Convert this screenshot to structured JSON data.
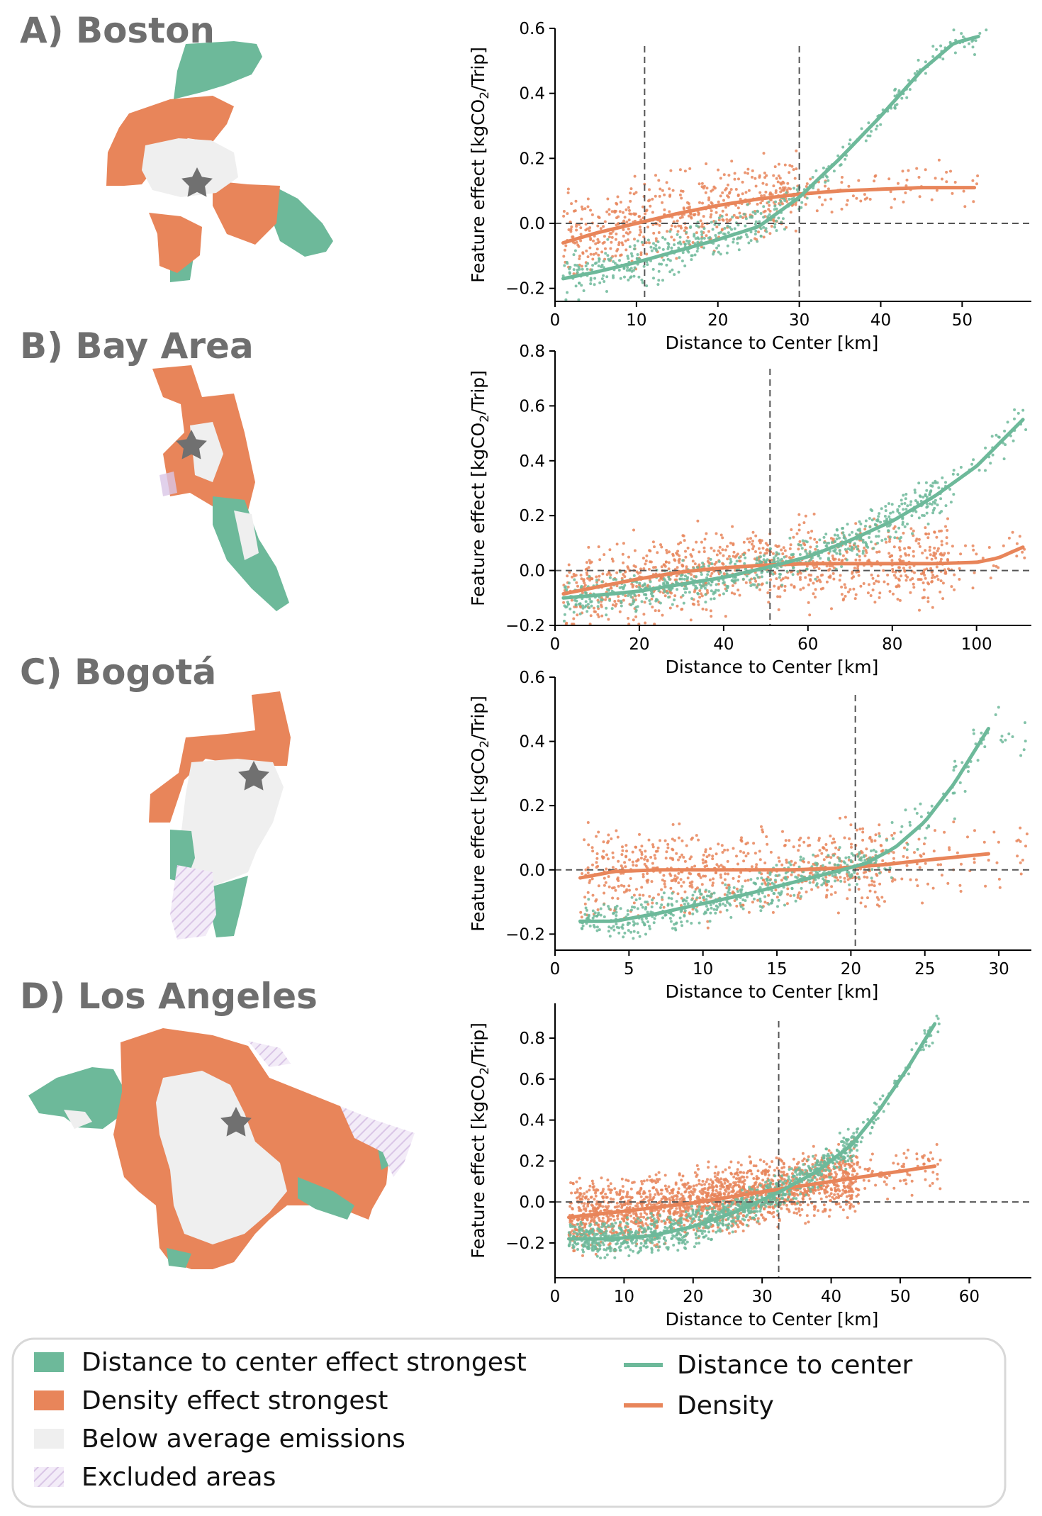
{
  "colors": {
    "distance": "#6db99a",
    "density": "#e8855a",
    "below": "#efefef",
    "excluded": "#d9c5e6",
    "star": "#707070",
    "title": "#6f6f6f"
  },
  "legend": {
    "items": [
      {
        "label": "Distance to center effect strongest",
        "kind": "patch",
        "color_key": "distance"
      },
      {
        "label": "Density effect strongest",
        "kind": "patch",
        "color_key": "density"
      },
      {
        "label": "Below average emissions",
        "kind": "patch",
        "color_key": "below"
      },
      {
        "label": "Excluded areas",
        "kind": "hatch",
        "color_key": "excluded"
      }
    ],
    "lines": [
      {
        "label": "Distance to center",
        "color_key": "distance"
      },
      {
        "label": "Density",
        "color_key": "density"
      }
    ]
  },
  "chart_data": [
    {
      "type": "scatter",
      "panel_title": "A) Boston",
      "map_icon": "boston-map",
      "xlabel": "Distance to Center [km]",
      "ylabel": "Feature effect [kgCO2/Trip]",
      "xlim": [
        0,
        58.5
      ],
      "ylim": [
        -0.24,
        0.6
      ],
      "xticks": [
        0,
        10,
        20,
        30,
        40,
        50
      ],
      "yticks": [
        -0.2,
        0.0,
        0.2,
        0.4,
        0.6
      ],
      "ytick_labels": [
        "−0.2",
        "0.0",
        "0.2",
        "0.4",
        "0.6"
      ],
      "vlines": [
        11,
        30
      ],
      "series": [
        {
          "name": "Density",
          "color_key": "density",
          "curve_x": [
            1,
            5,
            10,
            15,
            20,
            25,
            30,
            35,
            40,
            45,
            51.5
          ],
          "curve_y": [
            -0.06,
            -0.03,
            0.0,
            0.03,
            0.055,
            0.075,
            0.09,
            0.1,
            0.105,
            0.11,
            0.11
          ],
          "point_clouds": [
            {
              "count": 520,
              "x": [
                1,
                30
              ],
              "y_spread": 0.1
            },
            {
              "count": 70,
              "x": [
                30,
                52
              ],
              "y_spread": 0.06
            }
          ]
        },
        {
          "name": "Distance to center",
          "color_key": "distance",
          "curve_x": [
            1,
            5,
            10,
            15,
            20,
            25,
            30,
            35,
            40,
            45,
            49,
            52
          ],
          "curve_y": [
            -0.17,
            -0.15,
            -0.12,
            -0.085,
            -0.05,
            -0.01,
            0.08,
            0.2,
            0.33,
            0.47,
            0.555,
            0.575
          ],
          "point_clouds": [
            {
              "count": 330,
              "x": [
                1,
                30
              ],
              "y_spread": 0.06
            },
            {
              "count": 110,
              "x": [
                30,
                53
              ],
              "y_spread": 0.035
            }
          ]
        }
      ]
    },
    {
      "type": "scatter",
      "panel_title": "B) Bay Area",
      "map_icon": "bay-area-map",
      "xlabel": "Distance to Center [km]",
      "ylabel": "Feature effect [kgCO2/Trip]",
      "xlim": [
        0,
        113
      ],
      "ylim": [
        -0.2,
        0.8
      ],
      "xticks": [
        0,
        20,
        40,
        60,
        80,
        100
      ],
      "yticks": [
        -0.2,
        0.0,
        0.2,
        0.4,
        0.6,
        0.8
      ],
      "ytick_labels": [
        "−0.2",
        "0.0",
        "0.2",
        "0.4",
        "0.6",
        "0.8"
      ],
      "vlines": [
        51
      ],
      "series": [
        {
          "name": "Density",
          "color_key": "density",
          "curve_x": [
            2,
            10,
            20,
            30,
            40,
            50,
            60,
            70,
            80,
            90,
            100,
            105,
            111
          ],
          "curve_y": [
            -0.085,
            -0.06,
            -0.03,
            -0.005,
            0.01,
            0.02,
            0.025,
            0.025,
            0.025,
            0.025,
            0.03,
            0.045,
            0.085
          ],
          "point_clouds": [
            {
              "count": 900,
              "x": [
                2,
                95
              ],
              "y_spread": 0.12
            },
            {
              "count": 25,
              "x": [
                95,
                112
              ],
              "y_spread": 0.09
            }
          ]
        },
        {
          "name": "Distance to center",
          "color_key": "distance",
          "curve_x": [
            2,
            10,
            20,
            30,
            40,
            50,
            60,
            70,
            80,
            90,
            100,
            111
          ],
          "curve_y": [
            -0.1,
            -0.09,
            -0.075,
            -0.05,
            -0.025,
            0.01,
            0.05,
            0.11,
            0.18,
            0.27,
            0.38,
            0.55
          ],
          "point_clouds": [
            {
              "count": 650,
              "x": [
                2,
                92
              ],
              "y_spread": 0.06
            },
            {
              "count": 40,
              "x": [
                92,
                112
              ],
              "y_spread": 0.06
            }
          ]
        }
      ]
    },
    {
      "type": "scatter",
      "panel_title": "C) Bogotá",
      "map_icon": "bogota-map",
      "xlabel": "Distance to Center [km]",
      "ylabel": "Feature effect [kgCO2/Trip]",
      "xlim": [
        0,
        32.2
      ],
      "ylim": [
        -0.25,
        0.6
      ],
      "xticks": [
        0,
        5,
        10,
        15,
        20,
        25,
        30
      ],
      "yticks": [
        -0.2,
        0.0,
        0.2,
        0.4,
        0.6
      ],
      "ytick_labels": [
        "−0.2",
        "0.0",
        "0.2",
        "0.4",
        "0.6"
      ],
      "vlines": [
        20.3
      ],
      "series": [
        {
          "name": "Density",
          "color_key": "density",
          "curve_x": [
            1.7,
            4,
            7,
            10,
            13,
            16,
            19,
            22,
            25,
            29.3
          ],
          "curve_y": [
            -0.025,
            -0.005,
            0.0,
            0.0,
            0.0,
            0.0,
            0.005,
            0.015,
            0.03,
            0.05
          ],
          "point_clouds": [
            {
              "count": 600,
              "x": [
                1.7,
                23
              ],
              "y_spread": 0.11
            },
            {
              "count": 60,
              "x": [
                23,
                32
              ],
              "y_spread": 0.09
            }
          ]
        },
        {
          "name": "Distance to center",
          "color_key": "distance",
          "curve_x": [
            1.7,
            4,
            7,
            10,
            13,
            16,
            19,
            21,
            23,
            25,
            27,
            29.3
          ],
          "curve_y": [
            -0.16,
            -0.16,
            -0.135,
            -0.105,
            -0.075,
            -0.04,
            -0.005,
            0.02,
            0.07,
            0.15,
            0.27,
            0.44
          ],
          "point_clouds": [
            {
              "count": 450,
              "x": [
                1.7,
                22
              ],
              "y_spread": 0.05
            },
            {
              "count": 70,
              "x": [
                22,
                32
              ],
              "y_spread": 0.08
            }
          ]
        }
      ]
    },
    {
      "type": "scatter",
      "panel_title": "D) Los Angeles",
      "map_icon": "los-angeles-map",
      "xlabel": "Distance to Center [km]",
      "ylabel": "Feature effect [kgCO2/Trip]",
      "xlim": [
        0,
        69
      ],
      "ylim": [
        -0.37,
        0.97
      ],
      "xticks": [
        0,
        10,
        20,
        30,
        40,
        50,
        60
      ],
      "yticks": [
        -0.2,
        0.0,
        0.2,
        0.4,
        0.6,
        0.8
      ],
      "ytick_labels": [
        "−0.2",
        "0.0",
        "0.2",
        "0.4",
        "0.6",
        "0.8"
      ],
      "vlines": [
        32.4
      ],
      "series": [
        {
          "name": "Density",
          "color_key": "density",
          "curve_x": [
            2,
            10,
            20,
            30,
            40,
            50,
            55
          ],
          "curve_y": [
            -0.075,
            -0.045,
            -0.005,
            0.05,
            0.1,
            0.15,
            0.175
          ],
          "point_clouds": [
            {
              "count": 1700,
              "x": [
                2,
                44
              ],
              "y_spread": 0.13
            },
            {
              "count": 70,
              "x": [
                44,
                56
              ],
              "y_spread": 0.1
            }
          ]
        },
        {
          "name": "Distance to center",
          "color_key": "distance",
          "curve_x": [
            2,
            8,
            14,
            20,
            26,
            32,
            38,
            43,
            47,
            51,
            55
          ],
          "curve_y": [
            -0.18,
            -0.18,
            -0.165,
            -0.12,
            -0.05,
            0.04,
            0.15,
            0.28,
            0.45,
            0.65,
            0.87
          ],
          "point_clouds": [
            {
              "count": 1000,
              "x": [
                2,
                44
              ],
              "y_spread": 0.07
            },
            {
              "count": 60,
              "x": [
                44,
                56
              ],
              "y_spread": 0.05
            }
          ]
        }
      ]
    }
  ]
}
